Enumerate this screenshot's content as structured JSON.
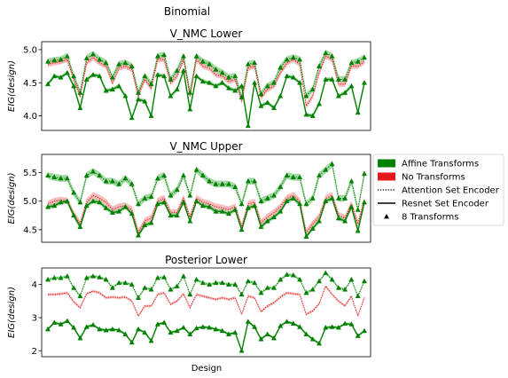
{
  "suptitle": "Binomial",
  "xlabel": "Design",
  "colors": {
    "affine": "#008000",
    "affine_band": "#7fc97f",
    "none": "#e41a1c",
    "none_band": "#f4a6a6",
    "frame": "#000000"
  },
  "legend": {
    "placement": "right of middle panel",
    "entries": [
      {
        "label": "Affine Transforms",
        "kind": "patch",
        "color": "#008000"
      },
      {
        "label": "No Transforms",
        "kind": "patch",
        "color": "#e41a1c"
      },
      {
        "label": "Attention Set Encoder",
        "kind": "dotted-line",
        "color": "#000000"
      },
      {
        "label": "Resnet Set Encoder",
        "kind": "solid-line",
        "color": "#000000"
      },
      {
        "label": "8 Transforms",
        "kind": "triangle-marker",
        "color": "#000000"
      }
    ]
  },
  "chart_data": [
    {
      "type": "line",
      "title": "V_NMC Lower",
      "ylabel": "EIG(design)",
      "ylim": [
        3.78,
        5.12
      ],
      "yticks": [
        "4.0",
        "4.5",
        "5.0"
      ],
      "ytick_values": [
        4.0,
        4.5,
        5.0
      ],
      "x": [
        0,
        1,
        2,
        3,
        4,
        5,
        6,
        7,
        8,
        9,
        10,
        11,
        12,
        13,
        14,
        15,
        16,
        17,
        18,
        19,
        20,
        21,
        22,
        23,
        24,
        25,
        26,
        27,
        28,
        29,
        30,
        31,
        32,
        33,
        34,
        35,
        36,
        37,
        38,
        39,
        40,
        41,
        42,
        43,
        44,
        45,
        46,
        47,
        48,
        49
      ],
      "series": [
        {
          "encoder": "attention",
          "transforms": "affine",
          "triangles": true,
          "band": 0.05,
          "values": [
            4.82,
            4.84,
            4.85,
            4.9,
            4.6,
            4.35,
            4.87,
            4.93,
            4.85,
            4.8,
            4.58,
            4.78,
            4.8,
            4.75,
            4.35,
            4.6,
            4.48,
            4.9,
            4.92,
            4.55,
            4.68,
            4.9,
            4.35,
            4.9,
            4.82,
            4.78,
            4.7,
            4.65,
            4.58,
            4.6,
            4.28,
            4.78,
            4.8,
            4.33,
            4.45,
            4.5,
            4.73,
            4.85,
            4.88,
            4.85,
            4.3,
            4.4,
            4.75,
            4.95,
            4.9,
            4.55,
            4.55,
            4.8,
            4.82,
            4.88
          ]
        },
        {
          "encoder": "attention",
          "transforms": "none",
          "triangles": false,
          "band": 0.04,
          "values": [
            4.78,
            4.8,
            4.82,
            4.85,
            4.55,
            4.3,
            4.8,
            4.88,
            4.8,
            4.75,
            4.5,
            4.72,
            4.75,
            4.7,
            4.3,
            4.55,
            4.42,
            4.85,
            4.85,
            4.5,
            4.6,
            4.85,
            4.3,
            4.85,
            4.75,
            4.72,
            4.62,
            4.6,
            4.52,
            4.55,
            4.22,
            4.72,
            4.75,
            4.28,
            4.4,
            4.45,
            4.65,
            4.8,
            4.85,
            4.78,
            4.15,
            4.3,
            4.65,
            4.9,
            4.85,
            4.48,
            4.48,
            4.75,
            4.75,
            4.82
          ]
        },
        {
          "encoder": "resnet",
          "transforms": "affine",
          "triangles": true,
          "band": 0.03,
          "values": [
            4.48,
            4.6,
            4.58,
            4.65,
            4.45,
            4.12,
            4.55,
            4.62,
            4.6,
            4.38,
            4.4,
            4.45,
            4.3,
            3.97,
            4.25,
            4.22,
            4.0,
            4.62,
            4.6,
            4.3,
            4.4,
            4.68,
            4.1,
            4.6,
            4.52,
            4.5,
            4.45,
            4.5,
            4.42,
            4.38,
            4.45,
            3.85,
            4.5,
            4.15,
            4.2,
            4.12,
            4.3,
            4.6,
            4.58,
            4.5,
            4.02,
            4.0,
            4.18,
            4.55,
            4.55,
            4.3,
            4.35,
            4.45,
            4.05,
            4.5
          ]
        }
      ]
    },
    {
      "type": "line",
      "title": "V_NMC Upper",
      "ylabel": "EIG(design)",
      "ylim": [
        4.28,
        5.82
      ],
      "yticks": [
        "4.5",
        "5.0",
        "5.5"
      ],
      "ytick_values": [
        4.5,
        5.0,
        5.5
      ],
      "x": [
        0,
        1,
        2,
        3,
        4,
        5,
        6,
        7,
        8,
        9,
        10,
        11,
        12,
        13,
        14,
        15,
        16,
        17,
        18,
        19,
        20,
        21,
        22,
        23,
        24,
        25,
        26,
        27,
        28,
        29,
        30,
        31,
        32,
        33,
        34,
        35,
        36,
        37,
        38,
        39,
        40,
        41,
        42,
        43,
        44,
        45,
        46,
        47,
        48,
        49
      ],
      "series": [
        {
          "encoder": "attention",
          "transforms": "affine",
          "triangles": true,
          "band": 0.06,
          "values": [
            5.45,
            5.42,
            5.4,
            5.4,
            5.15,
            4.98,
            5.45,
            5.52,
            5.45,
            5.35,
            5.35,
            5.3,
            5.4,
            5.3,
            4.95,
            5.05,
            5.08,
            5.4,
            5.45,
            5.1,
            5.2,
            5.45,
            5.1,
            5.55,
            5.45,
            5.35,
            5.3,
            5.3,
            5.3,
            5.25,
            4.95,
            5.35,
            5.35,
            5.0,
            5.05,
            5.1,
            5.25,
            5.45,
            5.42,
            5.42,
            4.95,
            5.05,
            5.45,
            5.55,
            5.65,
            5.05,
            5.05,
            5.35,
            4.85,
            5.48
          ]
        },
        {
          "encoder": "attention",
          "transforms": "none",
          "triangles": false,
          "band": 0.06,
          "values": [
            4.95,
            5.0,
            5.02,
            5.0,
            4.78,
            4.6,
            4.98,
            5.1,
            5.05,
            4.98,
            4.85,
            4.9,
            4.92,
            4.85,
            4.45,
            4.65,
            4.7,
            5.0,
            5.05,
            4.8,
            4.8,
            5.05,
            4.72,
            5.05,
            4.98,
            4.95,
            4.9,
            4.88,
            4.85,
            4.9,
            4.55,
            4.95,
            4.98,
            4.62,
            4.72,
            4.8,
            4.9,
            5.05,
            5.1,
            5.0,
            4.45,
            4.6,
            4.72,
            5.05,
            5.1,
            4.75,
            4.7,
            4.95,
            4.6,
            5.02
          ]
        },
        {
          "encoder": "resnet",
          "transforms": "affine",
          "triangles": true,
          "band": 0.04,
          "values": [
            4.9,
            4.92,
            4.98,
            5.0,
            4.75,
            4.55,
            4.92,
            5.0,
            4.98,
            4.88,
            4.8,
            4.82,
            4.9,
            4.78,
            4.4,
            4.58,
            4.62,
            4.95,
            4.98,
            4.75,
            4.75,
            4.98,
            4.65,
            5.0,
            4.92,
            4.9,
            4.82,
            4.82,
            4.78,
            4.85,
            4.5,
            4.88,
            4.92,
            4.55,
            4.65,
            4.72,
            4.82,
            5.0,
            5.05,
            4.95,
            4.38,
            4.52,
            4.65,
            5.0,
            5.05,
            4.7,
            4.65,
            4.9,
            4.48,
            4.98
          ]
        }
      ]
    },
    {
      "type": "line",
      "title": "Posterior Lower",
      "ylabel": "EIG(design)",
      "ylim": [
        1.82,
        4.5
      ],
      "yticks": [
        "2",
        "3",
        "4"
      ],
      "ytick_values": [
        2,
        3,
        4
      ],
      "x": [
        0,
        1,
        2,
        3,
        4,
        5,
        6,
        7,
        8,
        9,
        10,
        11,
        12,
        13,
        14,
        15,
        16,
        17,
        18,
        19,
        20,
        21,
        22,
        23,
        24,
        25,
        26,
        27,
        28,
        29,
        30,
        31,
        32,
        33,
        34,
        35,
        36,
        37,
        38,
        39,
        40,
        41,
        42,
        43,
        44,
        45,
        46,
        47,
        48,
        49
      ],
      "series": [
        {
          "encoder": "attention",
          "transforms": "affine",
          "triangles": true,
          "band": 0.04,
          "values": [
            4.15,
            4.2,
            4.2,
            4.25,
            3.9,
            3.65,
            4.2,
            4.25,
            4.22,
            4.15,
            3.9,
            4.05,
            4.05,
            4.0,
            3.6,
            3.9,
            3.85,
            4.2,
            4.22,
            3.85,
            3.95,
            4.25,
            3.7,
            4.15,
            4.05,
            4.0,
            4.05,
            4.05,
            4.0,
            4.0,
            3.7,
            4.1,
            4.05,
            3.75,
            3.9,
            3.9,
            4.15,
            4.3,
            4.28,
            4.15,
            3.75,
            3.85,
            4.1,
            4.35,
            4.15,
            3.9,
            3.85,
            4.15,
            3.65,
            4.1
          ]
        },
        {
          "encoder": "attention",
          "transforms": "none",
          "triangles": false,
          "band": 0.04,
          "values": [
            3.7,
            3.7,
            3.72,
            3.75,
            3.48,
            3.3,
            3.72,
            3.8,
            3.75,
            3.6,
            3.62,
            3.6,
            3.62,
            3.5,
            3.05,
            3.35,
            3.35,
            3.7,
            3.75,
            3.4,
            3.5,
            3.72,
            3.3,
            3.7,
            3.65,
            3.6,
            3.55,
            3.6,
            3.55,
            3.6,
            3.1,
            3.65,
            3.6,
            3.18,
            3.35,
            3.45,
            3.62,
            3.75,
            3.72,
            3.7,
            3.1,
            3.2,
            3.42,
            3.95,
            3.7,
            3.5,
            3.35,
            3.65,
            3.05,
            3.6
          ]
        },
        {
          "encoder": "resnet",
          "transforms": "affine",
          "triangles": true,
          "band": 0.04,
          "values": [
            2.65,
            2.85,
            2.8,
            2.9,
            2.7,
            2.38,
            2.72,
            2.78,
            2.65,
            2.62,
            2.65,
            2.62,
            2.5,
            2.25,
            2.65,
            2.55,
            2.3,
            2.8,
            2.85,
            2.55,
            2.6,
            2.7,
            2.5,
            2.68,
            2.72,
            2.7,
            2.65,
            2.6,
            2.5,
            2.55,
            2.0,
            2.88,
            2.72,
            2.35,
            2.5,
            2.38,
            2.75,
            2.88,
            2.82,
            2.72,
            2.5,
            2.35,
            2.22,
            2.7,
            2.72,
            2.7,
            2.82,
            2.8,
            2.45,
            2.6
          ]
        }
      ]
    }
  ]
}
